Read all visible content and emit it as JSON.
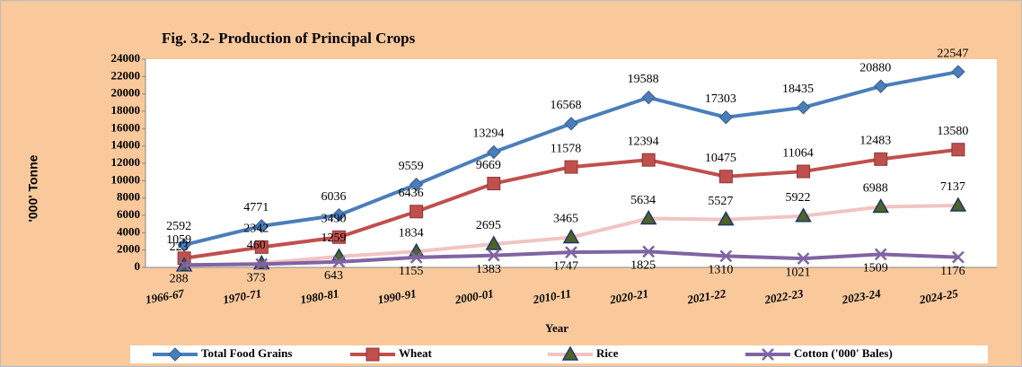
{
  "chart_data": {
    "type": "line",
    "title": "Fig. 3.2- Production of Principal Crops",
    "ylabel": "'000' Tonne",
    "xlabel": "Year",
    "categories": [
      "1966-67",
      "1970-71",
      "1980-81",
      "1990-91",
      "2000-01",
      "2010-11",
      "2020-21",
      "2021-22",
      "2022-23",
      "2023-24",
      "2024-25"
    ],
    "series": [
      {
        "name": "Total Food Grains",
        "color": "#4a7ebb",
        "marker": "diamond",
        "values": [
          2592,
          4771,
          6036,
          9559,
          13294,
          16568,
          19588,
          17303,
          18435,
          20880,
          22547
        ]
      },
      {
        "name": "Wheat",
        "color": "#c0504d",
        "marker": "square",
        "values": [
          1059,
          2342,
          3490,
          6436,
          9669,
          11578,
          12394,
          10475,
          11064,
          12483,
          13580
        ]
      },
      {
        "name": "Rice",
        "color": "#f2c3c3",
        "marker": "triangle",
        "values": [
          223,
          460,
          1259,
          1834,
          2695,
          3465,
          5634,
          5527,
          5922,
          6988,
          7137
        ]
      },
      {
        "name": "Cotton ('000' Bales)",
        "color": "#8064a2",
        "marker": "x",
        "values": [
          288,
          373,
          643,
          1155,
          1383,
          1747,
          1825,
          1310,
          1021,
          1509,
          1176
        ]
      }
    ],
    "ylim": [
      0,
      24000
    ],
    "yticks": [
      0,
      2000,
      4000,
      6000,
      8000,
      10000,
      12000,
      14000,
      16000,
      18000,
      20000,
      22000,
      24000
    ],
    "legend": "bottom"
  }
}
